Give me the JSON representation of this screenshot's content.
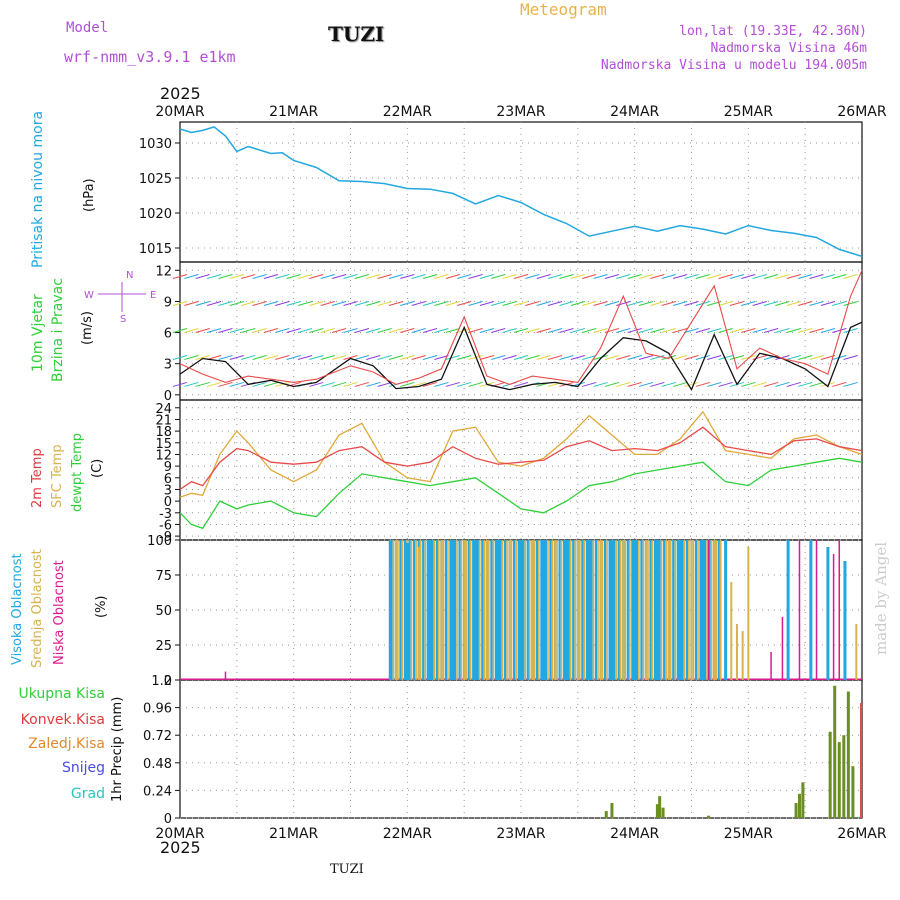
{
  "header": {
    "model_label": "Model",
    "model_name": "wrf-nmm_v3.9.1 e1km",
    "station": "TUZI",
    "title": "Meteogram",
    "lonlat": "lon,lat (19.33E, 42.36N)",
    "elevation": "Nadmorska Visina 46m",
    "model_elevation": "Nadmorska Visina u modelu 194.005m",
    "year_top": "2025",
    "year_bottom": "2025",
    "footer_station": "TUZI",
    "credit": "made by Angel"
  },
  "colors": {
    "pressure": "#22a7e0",
    "temp2m": "#e84a4a",
    "sfc": "#e0a838",
    "dewpt": "#2fcf3a",
    "high_cloud": "#22a7e0",
    "mid_cloud": "#d8b24c",
    "low_cloud": "#d81b8e",
    "total_precip": "#2fcf3a",
    "conv_precip": "#e84a4a",
    "frozen_precip": "#e08a2a",
    "snow": "#4b4be0",
    "graupel": "#27c6c0",
    "wind_speed": "#111111",
    "gust": "#e84a4a"
  },
  "chart_data": [
    {
      "type": "line",
      "id": "pressure",
      "ylabel": "(hPa)",
      "side_label": "Pritisak na nivou mora",
      "x_ticks": [
        "20MAR",
        "21MAR",
        "22MAR",
        "23MAR",
        "24MAR",
        "25MAR",
        "26MAR"
      ],
      "y_ticks": [
        1015,
        1020,
        1025,
        1030
      ],
      "ylim": [
        1013,
        1033
      ],
      "series": [
        {
          "x": [
            0,
            0.1,
            0.2,
            0.3,
            0.4,
            0.5,
            0.6,
            0.7,
            0.8,
            0.9,
            1.0,
            1.2,
            1.4,
            1.6,
            1.8,
            2.0,
            2.2,
            2.4,
            2.6,
            2.8,
            3.0,
            3.2,
            3.4,
            3.6,
            3.8,
            4.0,
            4.2,
            4.4,
            4.6,
            4.8,
            5.0,
            5.2,
            5.4,
            5.6,
            5.8,
            6.0
          ],
          "y": [
            1032,
            1031.5,
            1031.8,
            1032.3,
            1031,
            1028.8,
            1029.5,
            1029,
            1028.5,
            1028.6,
            1027.5,
            1026.5,
            1024.6,
            1024.5,
            1024.2,
            1023.5,
            1023.4,
            1022.8,
            1021.3,
            1022.5,
            1021.5,
            1019.8,
            1018.5,
            1016.7,
            1017.4,
            1018.1,
            1017.4,
            1018.2,
            1017.7,
            1017,
            1018.2,
            1017.5,
            1017.1,
            1016.5,
            1014.8,
            1013.8
          ]
        }
      ]
    },
    {
      "type": "line",
      "id": "wind",
      "ylabel": "(m/s)",
      "side_label_1": "10m Vjetar",
      "side_label_2": "Brzina i Pravac",
      "compass_n": "N",
      "compass_w": "W",
      "compass_e": "E",
      "compass_s": "S",
      "y_ticks": [
        0,
        3,
        6,
        9,
        12
      ],
      "ylim": [
        -0.5,
        12.8
      ],
      "series": [
        {
          "name": "speed",
          "x": [
            0,
            0.2,
            0.4,
            0.6,
            0.8,
            1.0,
            1.2,
            1.5,
            1.7,
            1.9,
            2.1,
            2.3,
            2.5,
            2.7,
            2.9,
            3.1,
            3.3,
            3.5,
            3.7,
            3.9,
            4.1,
            4.3,
            4.5,
            4.7,
            4.9,
            5.1,
            5.3,
            5.5,
            5.7,
            5.9,
            6.0
          ],
          "y": [
            2,
            3.5,
            3.2,
            1.0,
            1.4,
            0.8,
            1.2,
            3.5,
            2.8,
            0.6,
            0.8,
            1.5,
            6.5,
            1.0,
            0.5,
            1.0,
            1.2,
            0.8,
            3.5,
            5.5,
            5.2,
            4.0,
            0.5,
            5.8,
            1.0,
            4.0,
            3.5,
            2.5,
            0.8,
            6.5,
            7.0
          ]
        },
        {
          "name": "gust",
          "x": [
            0,
            0.2,
            0.4,
            0.6,
            0.8,
            1.0,
            1.2,
            1.5,
            1.7,
            1.9,
            2.1,
            2.3,
            2.5,
            2.7,
            2.9,
            3.1,
            3.3,
            3.5,
            3.7,
            3.9,
            4.1,
            4.3,
            4.5,
            4.7,
            4.9,
            5.1,
            5.3,
            5.5,
            5.7,
            5.9,
            6.0
          ],
          "y": [
            3,
            2.0,
            1.2,
            1.8,
            1.5,
            1.2,
            1.5,
            2.8,
            2.2,
            1.0,
            1.6,
            2.5,
            7.5,
            1.8,
            1.0,
            1.8,
            1.5,
            1.2,
            4.5,
            9.5,
            4.0,
            3.5,
            7.0,
            10.5,
            2.5,
            4.5,
            3.5,
            3.0,
            2.0,
            9.5,
            12.0
          ]
        }
      ]
    },
    {
      "type": "line",
      "id": "temperature",
      "ylabel": "(C)",
      "side_label_1": "2m Temp",
      "side_label_2": "SFC Temp",
      "side_label_3": "dewpt Temp",
      "y_ticks": [
        -9,
        -6,
        -3,
        0,
        3,
        6,
        9,
        12,
        15,
        18,
        21,
        24
      ],
      "ylim": [
        -10,
        26
      ],
      "series": [
        {
          "name": "2m",
          "x": [
            0,
            0.1,
            0.2,
            0.35,
            0.5,
            0.6,
            0.8,
            1.0,
            1.2,
            1.4,
            1.6,
            1.8,
            2.0,
            2.2,
            2.4,
            2.6,
            2.8,
            3.0,
            3.2,
            3.4,
            3.6,
            3.8,
            4.0,
            4.2,
            4.4,
            4.6,
            4.8,
            5.0,
            5.2,
            5.4,
            5.6,
            5.8,
            6.0
          ],
          "y": [
            3,
            5,
            4,
            10,
            13.5,
            13,
            10,
            9.5,
            10,
            13,
            14,
            10,
            9,
            10,
            14,
            11,
            9.5,
            10,
            10.5,
            14,
            15.5,
            13,
            13.5,
            13,
            15,
            19,
            14,
            13,
            12,
            15.5,
            16,
            14,
            13
          ]
        },
        {
          "name": "sfc",
          "x": [
            0,
            0.1,
            0.2,
            0.35,
            0.5,
            0.6,
            0.8,
            1.0,
            1.2,
            1.4,
            1.6,
            1.8,
            2.0,
            2.2,
            2.4,
            2.6,
            2.8,
            3.0,
            3.2,
            3.4,
            3.6,
            3.8,
            4.0,
            4.2,
            4.4,
            4.6,
            4.8,
            5.0,
            5.2,
            5.4,
            5.6,
            5.8,
            6.0
          ],
          "y": [
            1,
            2,
            1.5,
            12,
            18,
            15,
            8,
            5,
            8,
            17,
            20,
            10,
            6,
            5,
            18,
            19,
            10,
            9,
            11,
            16,
            22,
            17,
            12,
            12,
            16,
            23,
            13,
            12,
            11,
            16,
            17,
            14,
            12
          ]
        },
        {
          "name": "dewpt",
          "x": [
            0,
            0.1,
            0.2,
            0.35,
            0.5,
            0.6,
            0.8,
            1.0,
            1.2,
            1.4,
            1.6,
            1.8,
            2.0,
            2.2,
            2.4,
            2.6,
            2.8,
            3.0,
            3.2,
            3.4,
            3.6,
            3.8,
            4.0,
            4.2,
            4.4,
            4.6,
            4.8,
            5.0,
            5.2,
            5.4,
            5.6,
            5.8,
            6.0
          ],
          "y": [
            -3,
            -6,
            -7,
            0,
            -2,
            -1,
            0,
            -3,
            -4,
            2,
            7,
            6,
            5,
            4,
            5,
            6,
            2,
            -2,
            -3,
            0,
            4,
            5,
            7,
            8,
            9,
            10,
            5,
            4,
            8,
            9,
            10,
            11,
            10
          ]
        }
      ]
    },
    {
      "type": "bar",
      "id": "clouds",
      "ylabel": "(%)",
      "side_label_1": "Visoka Oblacnost",
      "side_label_2": "Srednja Oblacnost",
      "side_label_3": "Niska Oblacnost",
      "y_ticks": [
        0,
        25,
        50,
        75,
        100
      ],
      "ylim": [
        0,
        100
      ],
      "high_x": [
        1.85,
        2.0,
        2.2,
        2.4,
        2.6,
        2.8,
        3.0,
        3.2,
        3.4,
        3.6,
        3.8,
        4.0,
        4.2,
        4.4,
        4.6,
        4.8,
        5.35,
        5.55,
        5.7,
        5.85
      ],
      "high_y": [
        100,
        98,
        100,
        100,
        100,
        100,
        100,
        100,
        100,
        100,
        100,
        100,
        100,
        100,
        100,
        100,
        100,
        100,
        95,
        85
      ],
      "mid_x": [
        1.9,
        2.1,
        2.3,
        2.5,
        2.7,
        2.9,
        3.1,
        3.3,
        3.5,
        3.7,
        3.9,
        4.1,
        4.3,
        4.5,
        4.7,
        4.85,
        4.9,
        4.95,
        5.0,
        5.95
      ],
      "mid_y": [
        100,
        95,
        100,
        100,
        100,
        100,
        100,
        100,
        100,
        100,
        100,
        100,
        100,
        100,
        100,
        70,
        40,
        35,
        95,
        40
      ],
      "low_x": [
        0.4,
        4.65,
        5.2,
        5.3,
        5.45,
        5.6,
        5.75,
        5.8
      ],
      "low_y": [
        6,
        100,
        20,
        45,
        100,
        100,
        90,
        100
      ]
    },
    {
      "type": "bar",
      "id": "precip",
      "ylabel": "1hr Precip (mm)",
      "side_label_1": "Ukupna Kisa",
      "side_label_2": "Konvek.Kisa",
      "side_label_3": "Zaledj.Kisa",
      "side_label_4": "Snijeg",
      "side_label_5": "Grad",
      "y_ticks": [
        0,
        0.24,
        0.48,
        0.72,
        0.96,
        1.2
      ],
      "ylim": [
        0,
        1.2
      ],
      "x": [
        3.75,
        3.8,
        4.2,
        4.22,
        4.25,
        4.65,
        5.42,
        5.45,
        5.48,
        5.72,
        5.76,
        5.8,
        5.84,
        5.88,
        5.92
      ],
      "y": [
        0.06,
        0.13,
        0.12,
        0.19,
        0.09,
        0.02,
        0.13,
        0.21,
        0.31,
        0.75,
        1.15,
        0.66,
        0.72,
        1.1,
        0.45
      ]
    }
  ]
}
